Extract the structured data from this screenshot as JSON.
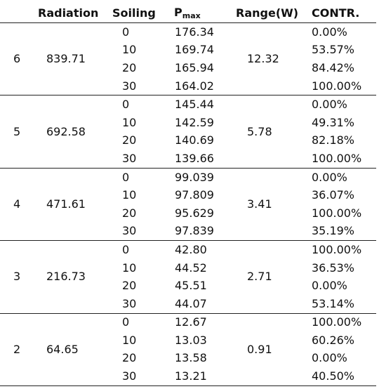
{
  "headers": {
    "group": "",
    "radiation": "Radiation",
    "soiling": "Soiling",
    "pmax_base": "P",
    "pmax_sub": "max",
    "range": "Range(W)",
    "contr": "CONTR."
  },
  "groups": [
    {
      "level": "6",
      "radiation": "839.71",
      "range": "12.32",
      "rows": [
        {
          "soiling": "0",
          "pmax": "176.34",
          "contr": "0.00%"
        },
        {
          "soiling": "10",
          "pmax": "169.74",
          "contr": "53.57%"
        },
        {
          "soiling": "20",
          "pmax": "165.94",
          "contr": "84.42%"
        },
        {
          "soiling": "30",
          "pmax": "164.02",
          "contr": "100.00%"
        }
      ]
    },
    {
      "level": "5",
      "radiation": "692.58",
      "range": "5.78",
      "rows": [
        {
          "soiling": "0",
          "pmax": "145.44",
          "contr": "0.00%"
        },
        {
          "soiling": "10",
          "pmax": "142.59",
          "contr": "49.31%"
        },
        {
          "soiling": "20",
          "pmax": "140.69",
          "contr": "82.18%"
        },
        {
          "soiling": "30",
          "pmax": "139.66",
          "contr": "100.00%"
        }
      ]
    },
    {
      "level": "4",
      "radiation": "471.61",
      "range": "3.41",
      "rows": [
        {
          "soiling": "0",
          "pmax": "99.039",
          "contr": "0.00%"
        },
        {
          "soiling": "10",
          "pmax": "97.809",
          "contr": "36.07%"
        },
        {
          "soiling": "20",
          "pmax": "95.629",
          "contr": "100.00%"
        },
        {
          "soiling": "30",
          "pmax": "97.839",
          "contr": "35.19%"
        }
      ]
    },
    {
      "level": "3",
      "radiation": "216.73",
      "range": "2.71",
      "rows": [
        {
          "soiling": "0",
          "pmax": "42.80",
          "contr": "100.00%"
        },
        {
          "soiling": "10",
          "pmax": "44.52",
          "contr": "36.53%"
        },
        {
          "soiling": "20",
          "pmax": "45.51",
          "contr": "0.00%"
        },
        {
          "soiling": "30",
          "pmax": "44.07",
          "contr": "53.14%"
        }
      ]
    },
    {
      "level": "2",
      "radiation": "64.65",
      "range": "0.91",
      "rows": [
        {
          "soiling": "0",
          "pmax": "12.67",
          "contr": "100.00%"
        },
        {
          "soiling": "10",
          "pmax": "13.03",
          "contr": "60.26%"
        },
        {
          "soiling": "20",
          "pmax": "13.58",
          "contr": "0.00%"
        },
        {
          "soiling": "30",
          "pmax": "13.21",
          "contr": "40.50%"
        }
      ]
    }
  ]
}
